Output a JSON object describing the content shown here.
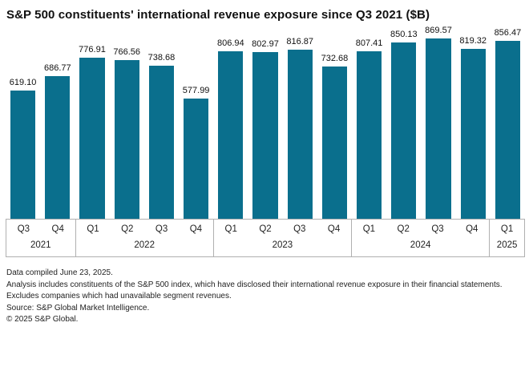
{
  "title": "S&P 500 constituents' international revenue exposure since Q3 2021 ($B)",
  "chart_data": {
    "type": "bar",
    "title": "S&P 500 constituents' international revenue exposure since Q3 2021 ($B)",
    "unit": "$B",
    "xlabel": "",
    "ylabel": "",
    "ylim": [
      0,
      900
    ],
    "y_axis_hidden": true,
    "grid": false,
    "legend": "none",
    "value_labels": true,
    "bar_color": "#0a6f8d",
    "categories": [
      "Q3 2021",
      "Q4 2021",
      "Q1 2022",
      "Q2 2022",
      "Q3 2022",
      "Q4 2022",
      "Q1 2023",
      "Q2 2023",
      "Q3 2023",
      "Q4 2023",
      "Q1 2024",
      "Q2 2024",
      "Q3 2024",
      "Q4 2024",
      "Q1 2025"
    ],
    "values": [
      619.1,
      686.77,
      776.91,
      766.56,
      738.68,
      577.99,
      806.94,
      802.97,
      816.87,
      732.68,
      807.41,
      850.13,
      869.57,
      819.32,
      856.47
    ],
    "groups": [
      {
        "year": "2021",
        "quarters": [
          "Q3",
          "Q4"
        ],
        "values": [
          619.1,
          686.77
        ]
      },
      {
        "year": "2022",
        "quarters": [
          "Q1",
          "Q2",
          "Q3",
          "Q4"
        ],
        "values": [
          776.91,
          766.56,
          738.68,
          577.99
        ]
      },
      {
        "year": "2023",
        "quarters": [
          "Q1",
          "Q2",
          "Q3",
          "Q4"
        ],
        "values": [
          806.94,
          802.97,
          816.87,
          732.68
        ]
      },
      {
        "year": "2024",
        "quarters": [
          "Q1",
          "Q2",
          "Q3",
          "Q4"
        ],
        "values": [
          807.41,
          850.13,
          869.57,
          819.32
        ]
      },
      {
        "year": "2025",
        "quarters": [
          "Q1"
        ],
        "values": [
          856.47
        ]
      }
    ]
  },
  "colors": {
    "bar": "#0a6f8d",
    "axis_line": "#b0b0b0",
    "text": "#1a1a1a"
  },
  "footer": {
    "lines": [
      "Data compiled June 23, 2025.",
      "Analysis includes constituents of the S&P 500 index, which have disclosed their international revenue exposure in their financial statements. Excludes companies which had unavailable segment revenues.",
      "Source: S&P Global Market Intelligence.",
      "© 2025 S&P Global."
    ]
  }
}
